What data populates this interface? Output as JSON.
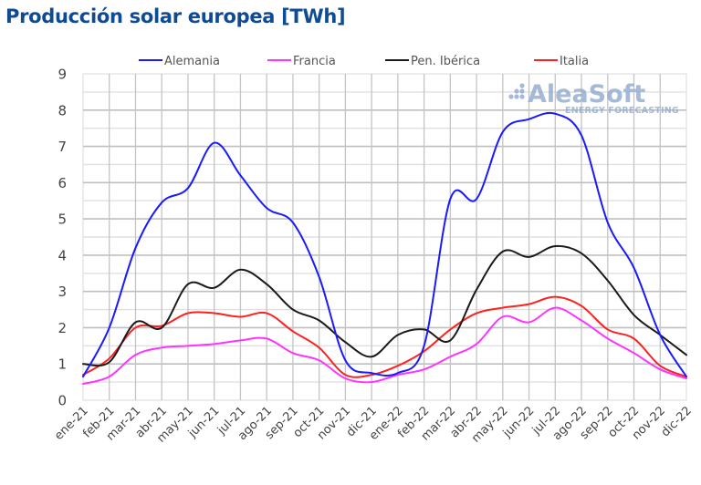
{
  "chart_data": {
    "type": "line",
    "title": "Producción solar europea [TWh]",
    "xlabel": "",
    "ylabel": "",
    "ylim": [
      0,
      9
    ],
    "yticks": [
      0,
      1,
      2,
      3,
      4,
      5,
      6,
      7,
      8,
      9
    ],
    "grid": true,
    "minor_grid_step": 0.5,
    "legend_position": "top",
    "watermark": {
      "name": "AleaSoft",
      "tagline": "ENERGY FORECASTING"
    },
    "categories": [
      "ene-21",
      "feb-21",
      "mar-21",
      "abr-21",
      "may-21",
      "jun-21",
      "jul-21",
      "ago-21",
      "sep-21",
      "oct-21",
      "nov-21",
      "dic-21",
      "ene-22",
      "feb-22",
      "mar-22",
      "abr-22",
      "may-22",
      "jun-22",
      "jul-22",
      "ago-22",
      "sep-22",
      "oct-22",
      "nov-22",
      "dic-22"
    ],
    "series": [
      {
        "name": "Alemania",
        "color": "#1a1aff",
        "values": [
          0.65,
          2.0,
          4.2,
          5.45,
          5.85,
          7.1,
          6.2,
          5.3,
          4.9,
          3.4,
          1.1,
          0.75,
          0.75,
          1.5,
          5.55,
          5.55,
          7.4,
          7.75,
          7.9,
          7.3,
          4.9,
          3.65,
          1.8,
          0.65
        ]
      },
      {
        "name": "Francia",
        "color": "#ff33ff",
        "values": [
          0.45,
          0.65,
          1.25,
          1.45,
          1.5,
          1.55,
          1.65,
          1.7,
          1.3,
          1.1,
          0.6,
          0.5,
          0.7,
          0.85,
          1.2,
          1.55,
          2.3,
          2.15,
          2.55,
          2.2,
          1.7,
          1.3,
          0.85,
          0.6
        ]
      },
      {
        "name": "Pen. Ibérica",
        "color": "#1a1a1a",
        "values": [
          1.0,
          1.05,
          2.15,
          2.0,
          3.2,
          3.1,
          3.6,
          3.2,
          2.5,
          2.2,
          1.6,
          1.2,
          1.8,
          1.95,
          1.65,
          3.05,
          4.1,
          3.95,
          4.25,
          4.05,
          3.3,
          2.35,
          1.8,
          1.25
        ]
      },
      {
        "name": "Italia",
        "color": "#ff2020",
        "values": [
          0.7,
          1.15,
          2.0,
          2.05,
          2.4,
          2.4,
          2.3,
          2.4,
          1.9,
          1.45,
          0.7,
          0.7,
          0.95,
          1.35,
          1.95,
          2.4,
          2.55,
          2.65,
          2.85,
          2.6,
          1.95,
          1.7,
          0.95,
          0.65
        ]
      }
    ]
  }
}
